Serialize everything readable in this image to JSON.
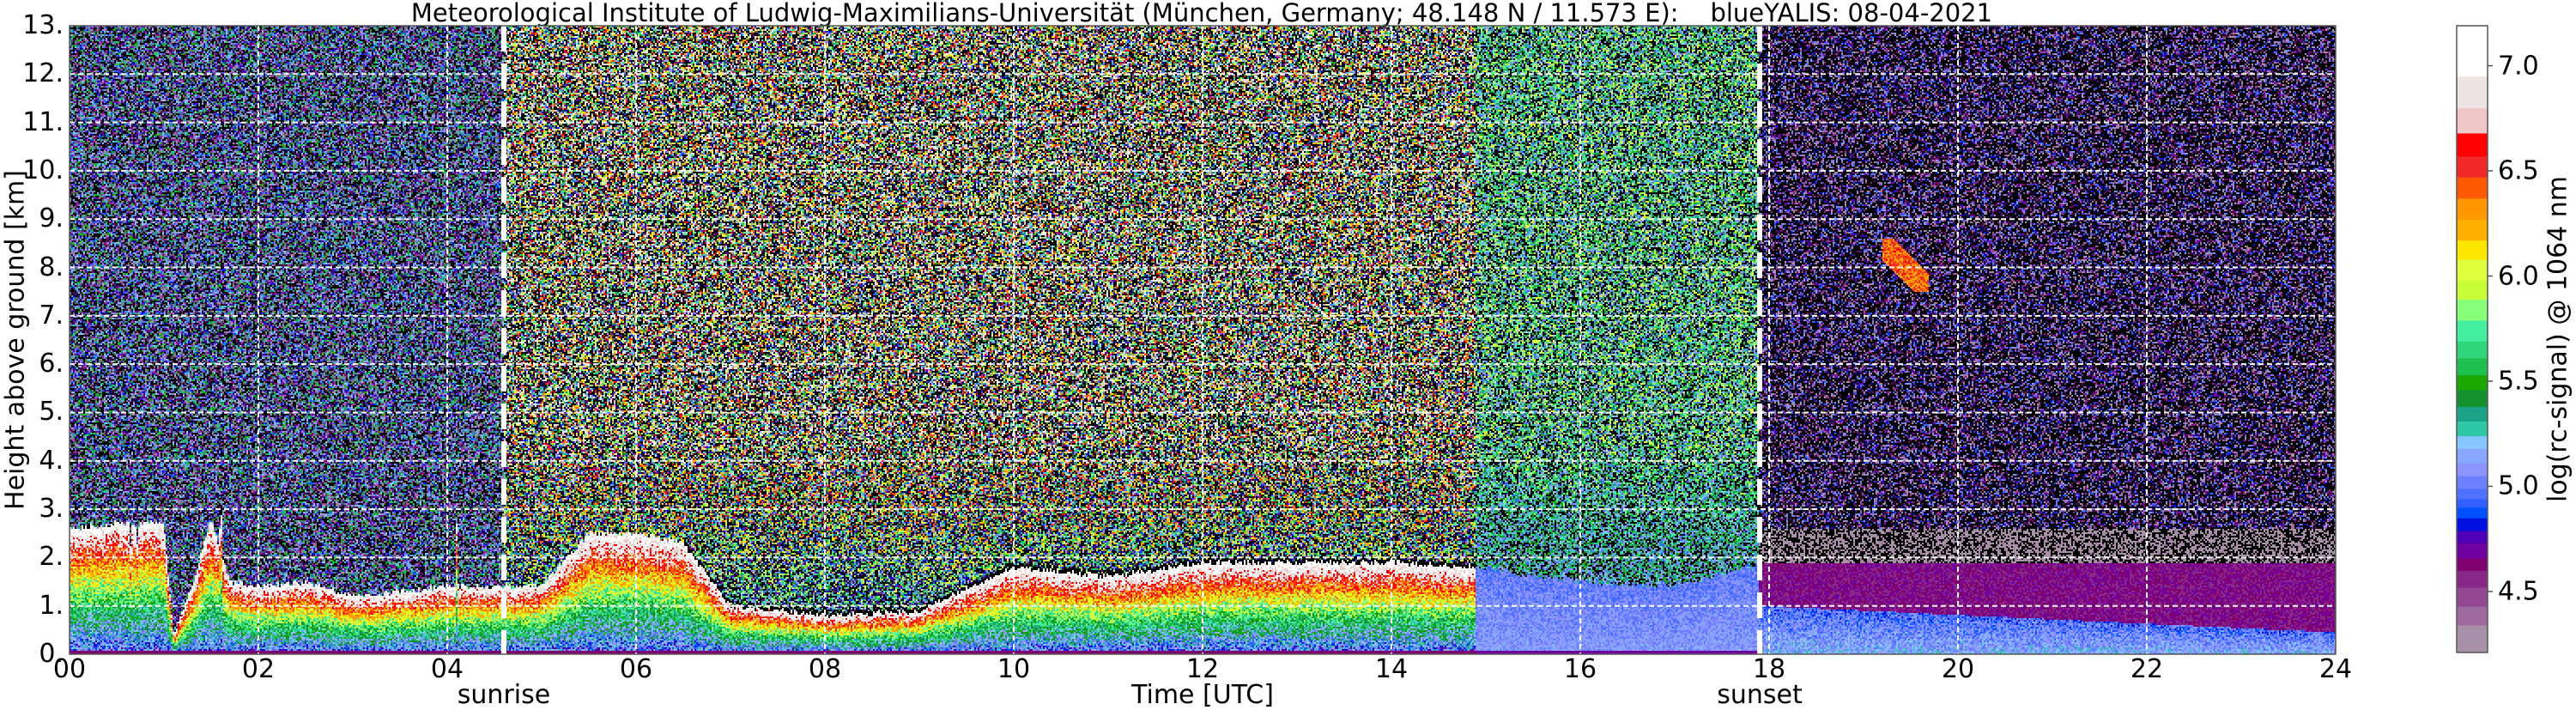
{
  "chart_data": {
    "type": "heatmap",
    "title": "Meteorological Institute of Ludwig-Maximilians-Universität (München, Germany; 48.148 N / 11.573 E):    blueYALIS: 08-04-2021",
    "xlabel": "Time [UTC]",
    "ylabel": "Height above ground [km]",
    "xlim": [
      0,
      24
    ],
    "ylim": [
      0,
      13
    ],
    "x_ticks": [
      0,
      2,
      4,
      6,
      8,
      10,
      12,
      14,
      16,
      18,
      20,
      22,
      24
    ],
    "x_tick_labels": [
      "00",
      "02",
      "04",
      "06",
      "08",
      "10",
      "12",
      "14",
      "16",
      "18",
      "20",
      "22",
      "24"
    ],
    "y_ticks": [
      0,
      1,
      2,
      3,
      4,
      5,
      6,
      7,
      8,
      9,
      10,
      11,
      12,
      13
    ],
    "y_tick_labels": [
      "0.",
      "1.",
      "2.",
      "3.",
      "4.",
      "5.",
      "6.",
      "7.",
      "8.",
      "9.",
      "10.",
      "11.",
      "12.",
      "13."
    ],
    "grid": true,
    "annotations": [
      {
        "label": "sunrise",
        "time": 4.6
      },
      {
        "label": "sunset",
        "time": 17.9
      }
    ],
    "colorbar": {
      "label": "log(rc-signal) @ 1064 nm",
      "range": [
        4.21,
        7.19
      ],
      "ticks": [
        4.5,
        5.0,
        5.5,
        6.0,
        6.5,
        7.0
      ],
      "tick_labels": [
        "4.5",
        "5.0",
        "5.5",
        "6.0",
        "6.5",
        "7.0"
      ],
      "levels": [
        4.21,
        4.34,
        4.43,
        4.52,
        4.6,
        4.66,
        4.73,
        4.79,
        4.85,
        4.9,
        4.94,
        4.99,
        5.05,
        5.11,
        5.18,
        5.24,
        5.31,
        5.38,
        5.46,
        5.53,
        5.61,
        5.69,
        5.79,
        5.89,
        5.98,
        6.08,
        6.17,
        6.27,
        6.37,
        6.47,
        6.57,
        6.68,
        6.8,
        6.95,
        7.19
      ],
      "colors": [
        "#a890a8",
        "#a06ca0",
        "#944894",
        "#882888",
        "#800070",
        "#7000a0",
        "#5000b8",
        "#0010e0",
        "#0050ff",
        "#3060ff",
        "#5070ff",
        "#6c80ff",
        "#8c94ff",
        "#88a8ff",
        "#88c4ff",
        "#2ec8a8",
        "#1ba38a",
        "#14902c",
        "#1aa800",
        "#1ec050",
        "#2fd678",
        "#44ee9e",
        "#88ff78",
        "#c8ff3a",
        "#e0ff3c",
        "#ffe600",
        "#ffae00",
        "#ff9800",
        "#ff5a00",
        "#f02828",
        "#ff0000",
        "#efc6c6",
        "#ede4e4",
        "#ffffff"
      ],
      "below_range_color": "#000000"
    },
    "aerosol_layer_top_km": {
      "time": [
        0,
        0.5,
        1.0,
        1.1,
        1.3,
        1.5,
        1.7,
        2.0,
        2.5,
        3.0,
        3.5,
        4.0,
        4.5,
        5.0,
        5.5,
        6.0,
        6.5,
        7.0,
        8.0,
        9.0,
        10.0,
        11.0,
        12.0,
        13.0,
        14.0,
        14.9,
        16.0,
        17.0,
        18.0,
        20.0,
        22.0,
        24.0
      ],
      "height": [
        2.6,
        2.7,
        2.7,
        0.4,
        1.4,
        2.8,
        1.5,
        1.4,
        1.5,
        1.2,
        1.3,
        1.4,
        1.4,
        1.4,
        2.5,
        2.5,
        2.3,
        1.0,
        0.8,
        0.9,
        1.8,
        1.6,
        1.9,
        1.9,
        1.9,
        1.8,
        1.5,
        1.4,
        1.9,
        1.8,
        1.6,
        1.5
      ]
    },
    "cirrus_feature": {
      "time": [
        19.2,
        19.7
      ],
      "height_km": [
        7.5,
        8.6
      ],
      "value": 6.4
    },
    "background_noise_regimes": [
      {
        "from": 0,
        "to": 4.6,
        "value_range": [
          4.3,
          5.6
        ]
      },
      {
        "from": 4.6,
        "to": 14.9,
        "value_range": [
          4.6,
          7.2
        ]
      },
      {
        "from": 14.9,
        "to": 17.9,
        "value_range": [
          4.9,
          6.1
        ]
      },
      {
        "from": 17.9,
        "to": 24,
        "value_range": [
          4.2,
          5.1
        ]
      }
    ]
  }
}
